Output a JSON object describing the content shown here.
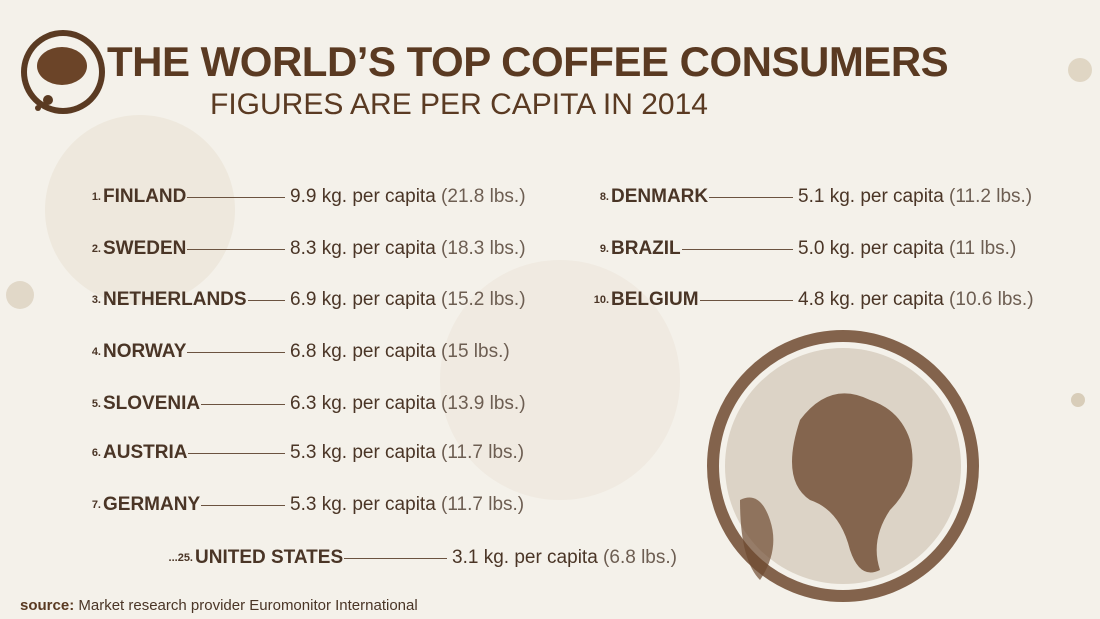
{
  "header": {
    "title": "THE WORLD’S TOP COFFEE CONSUMERS",
    "subtitle": "FIGURES ARE PER CAPITA IN 2014"
  },
  "entries": [
    {
      "rank": "1.",
      "country": "FINLAND",
      "amount": "9.9 kg. per capita",
      "lbs": "(21.8 lbs.)"
    },
    {
      "rank": "2.",
      "country": "SWEDEN",
      "amount": "8.3 kg. per capita",
      "lbs": "(18.3 lbs.)"
    },
    {
      "rank": "3.",
      "country": "NETHERLANDS",
      "amount": "6.9 kg. per capita",
      "lbs": "(15.2 lbs.)"
    },
    {
      "rank": "4.",
      "country": "NORWAY",
      "amount": "6.8 kg. per capita",
      "lbs": "(15 lbs.)"
    },
    {
      "rank": "5.",
      "country": "SLOVENIA",
      "amount": "6.3 kg. per capita",
      "lbs": "(13.9 lbs.)"
    },
    {
      "rank": "6.",
      "country": "AUSTRIA",
      "amount": "5.3 kg. per capita",
      "lbs": "(11.7 lbs.)"
    },
    {
      "rank": "7.",
      "country": "GERMANY",
      "amount": "5.3 kg. per capita",
      "lbs": "(11.7 lbs.)"
    },
    {
      "rank": "8.",
      "country": "DENMARK",
      "amount": "5.1 kg. per capita",
      "lbs": "(11.2 lbs.)"
    },
    {
      "rank": "9.",
      "country": "BRAZIL",
      "amount": "5.0 kg. per capita",
      "lbs": "(11 lbs.)"
    },
    {
      "rank": "10.",
      "country": "BELGIUM",
      "amount": "4.8 kg. per capita",
      "lbs": "(10.6 lbs.)"
    },
    {
      "rank": "...25.",
      "country": "UNITED STATES",
      "amount": "3.1 kg. per capita",
      "lbs": "(6.8 lbs.)"
    }
  ],
  "source": {
    "label": "source:",
    "text": "Market research provider Euromonitor International"
  }
}
